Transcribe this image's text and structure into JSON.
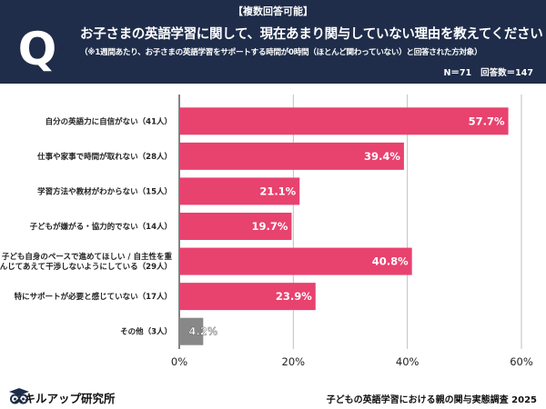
{
  "header": {
    "badge": "Q",
    "tag": "【複数回答可能】",
    "title": "お子さまの英語学習に関して、現在あまり関与していない理由を教えてください",
    "note": "（※1週間あたり、お子さまの英語学習をサポートする時間が0時間（ほとんど関わっていない）と回答された方対象）",
    "n_label": "N＝71",
    "answers_label": "回答数＝147"
  },
  "chart_data": {
    "type": "bar",
    "orientation": "horizontal",
    "categories": [
      "自分の英語力に自信がない（41人）",
      "仕事や家事で時間が取れない（28人）",
      "学習方法や教材がわからない（15人）",
      "子どもが嫌がる・協力的でない（14人）",
      "子ども自身のペースで進めてほしい / 自主性を重んじてあえて干渉しないようにしている（29人）",
      "特にサポートが必要と感じていない（17人）",
      "その他（3人）"
    ],
    "category_lines": [
      [
        "自分の英語力に自信がない（41人）"
      ],
      [
        "仕事や家事で時間が取れない（28人）"
      ],
      [
        "学習方法や教材がわからない（15人）"
      ],
      [
        "子どもが嫌がる・協力的でない（14人）"
      ],
      [
        "子ども自身のペースで進めてほしい / 自主性を重",
        "んじてあえて干渉しないようにしている（29人）"
      ],
      [
        "特にサポートが必要と感じていない（17人）"
      ],
      [
        "その他（3人）"
      ]
    ],
    "values": [
      57.7,
      39.4,
      21.1,
      19.7,
      40.8,
      23.9,
      4.2
    ],
    "value_labels": [
      "57.7%",
      "39.4%",
      "21.1%",
      "19.7%",
      "40.8%",
      "23.9%",
      "4.2%"
    ],
    "bar_colors": [
      "#e8426f",
      "#e8426f",
      "#e8426f",
      "#e8426f",
      "#e8426f",
      "#e8426f",
      "#888888"
    ],
    "xlim": [
      0,
      60
    ],
    "xticks": [
      0,
      20,
      40,
      60
    ],
    "xtick_labels": [
      "0%",
      "20%",
      "40%",
      "60%"
    ],
    "grid": true
  },
  "footer": {
    "logo_text": "スキルアップ研究所",
    "source": "子どもの英語学習における親の関与実態調査 2025"
  },
  "colors": {
    "header_bg": "#1f2d4a",
    "bar": "#e8426f",
    "other_bar": "#888888"
  }
}
